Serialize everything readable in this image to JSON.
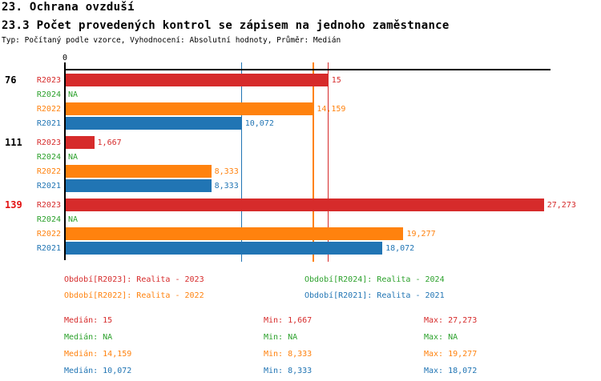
{
  "header": {
    "title": "23. Ochrana ovzduší",
    "subtitle": "23.3 Počet provedených kontrol se zápisem na jednoho zaměstnance",
    "meta": "Typ: Počítaný podle vzorce, Vyhodnocení: Absolutní hodnoty, Průměr: Medián"
  },
  "series_colors": {
    "R2023": "#d62b2b",
    "R2024": "#2ca12c",
    "R2022": "#ff820e",
    "R2021": "#2175b4"
  },
  "highlight_color": "#e31212",
  "axis_color": "#000000",
  "chart_data": {
    "type": "bar",
    "orientation": "horizontal",
    "value_axis": {
      "origin_tick_label": "0",
      "min": 0,
      "max": 27.65,
      "gridlines": false
    },
    "series_order": [
      "R2023",
      "R2024",
      "R2022",
      "R2021"
    ],
    "groups": [
      {
        "label": "76",
        "highlighted": false,
        "values": {
          "R2023": 15,
          "R2024": null,
          "R2022": 14.159,
          "R2021": 10.072
        },
        "display": {
          "R2023": "15",
          "R2024": "NA",
          "R2022": "14,159",
          "R2021": "10,072"
        }
      },
      {
        "label": "111",
        "highlighted": false,
        "values": {
          "R2023": 1.667,
          "R2024": null,
          "R2022": 8.333,
          "R2021": 8.333
        },
        "display": {
          "R2023": "1,667",
          "R2024": "NA",
          "R2022": "8,333",
          "R2021": "8,333"
        }
      },
      {
        "label": "139",
        "highlighted": true,
        "values": {
          "R2023": 27.273,
          "R2024": null,
          "R2022": 19.277,
          "R2021": 18.072
        },
        "display": {
          "R2023": "27,273",
          "R2024": "NA",
          "R2022": "19,277",
          "R2021": "18,072"
        }
      }
    ],
    "median_lines": {
      "R2023": 15,
      "R2022": 14.159,
      "R2021": 10.072
    }
  },
  "legend": {
    "items": [
      {
        "series": "R2023",
        "text": "Období[R2023]: Realita - 2023"
      },
      {
        "series": "R2024",
        "text": "Období[R2024]: Realita - 2024"
      },
      {
        "series": "R2022",
        "text": "Období[R2022]: Realita - 2022"
      },
      {
        "series": "R2021",
        "text": "Období[R2021]: Realita - 2021"
      }
    ]
  },
  "stats": {
    "rows": [
      {
        "series": "R2023",
        "median": "Medián: 15",
        "min": "Min: 1,667",
        "max": "Max: 27,273"
      },
      {
        "series": "R2024",
        "median": "Medián: NA",
        "min": "Min: NA",
        "max": "Max: NA"
      },
      {
        "series": "R2022",
        "median": "Medián: 14,159",
        "min": "Min: 8,333",
        "max": "Max: 19,277"
      },
      {
        "series": "R2021",
        "median": "Medián: 10,072",
        "min": "Min: 8,333",
        "max": "Max: 18,072"
      }
    ]
  }
}
